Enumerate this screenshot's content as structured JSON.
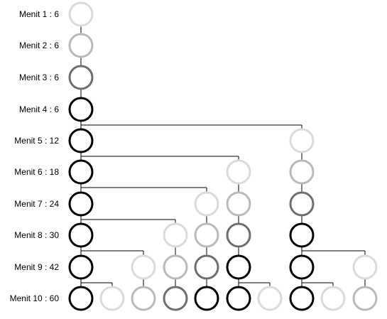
{
  "row_labels": [
    "Menit 1 : 6",
    "Menit 2 : 6",
    "Menit 3 : 6",
    "Menit 4 : 6",
    "Menit 5 : 12",
    "Menit 6 : 18",
    "Menit 7 : 24",
    "Menit 8 : 30",
    "Menit 9 : 42",
    "Menit  10 : 60"
  ],
  "stage_colors": [
    "#dadada",
    "#b9b9b9",
    "#6e6e6e",
    "#000000"
  ],
  "nodes": [
    {
      "row": 0,
      "col": 0,
      "stage": 0
    },
    {
      "row": 1,
      "col": 0,
      "stage": 1
    },
    {
      "row": 2,
      "col": 0,
      "stage": 2
    },
    {
      "row": 3,
      "col": 0,
      "stage": 3
    },
    {
      "row": 4,
      "col": 0,
      "stage": 3
    },
    {
      "row": 4,
      "col": 7,
      "stage": 0
    },
    {
      "row": 5,
      "col": 0,
      "stage": 3
    },
    {
      "row": 5,
      "col": 5,
      "stage": 0
    },
    {
      "row": 5,
      "col": 7,
      "stage": 1
    },
    {
      "row": 6,
      "col": 0,
      "stage": 3
    },
    {
      "row": 6,
      "col": 4,
      "stage": 0
    },
    {
      "row": 6,
      "col": 5,
      "stage": 1
    },
    {
      "row": 6,
      "col": 7,
      "stage": 2
    },
    {
      "row": 7,
      "col": 0,
      "stage": 3
    },
    {
      "row": 7,
      "col": 3,
      "stage": 0
    },
    {
      "row": 7,
      "col": 4,
      "stage": 1
    },
    {
      "row": 7,
      "col": 5,
      "stage": 2
    },
    {
      "row": 7,
      "col": 7,
      "stage": 3
    },
    {
      "row": 8,
      "col": 0,
      "stage": 3
    },
    {
      "row": 8,
      "col": 2,
      "stage": 0
    },
    {
      "row": 8,
      "col": 3,
      "stage": 1
    },
    {
      "row": 8,
      "col": 4,
      "stage": 2
    },
    {
      "row": 8,
      "col": 5,
      "stage": 3
    },
    {
      "row": 8,
      "col": 7,
      "stage": 3
    },
    {
      "row": 8,
      "col": 9,
      "stage": 0
    },
    {
      "row": 9,
      "col": 0,
      "stage": 3
    },
    {
      "row": 9,
      "col": 1,
      "stage": 0
    },
    {
      "row": 9,
      "col": 2,
      "stage": 1
    },
    {
      "row": 9,
      "col": 3,
      "stage": 2
    },
    {
      "row": 9,
      "col": 4,
      "stage": 3
    },
    {
      "row": 9,
      "col": 5,
      "stage": 3
    },
    {
      "row": 9,
      "col": 6,
      "stage": 0
    },
    {
      "row": 9,
      "col": 7,
      "stage": 3
    },
    {
      "row": 9,
      "col": 8,
      "stage": 0
    },
    {
      "row": 9,
      "col": 9,
      "stage": 1
    }
  ],
  "branches": [
    {
      "from_row": 3,
      "from_col": 0,
      "to_col": 7
    },
    {
      "from_row": 4,
      "from_col": 0,
      "to_col": 5
    },
    {
      "from_row": 5,
      "from_col": 0,
      "to_col": 4
    },
    {
      "from_row": 6,
      "from_col": 0,
      "to_col": 3
    },
    {
      "from_row": 7,
      "from_col": 0,
      "to_col": 2
    },
    {
      "from_row": 7,
      "from_col": 7,
      "to_col": 9
    },
    {
      "from_row": 8,
      "from_col": 0,
      "to_col": 1
    },
    {
      "from_row": 8,
      "from_col": 5,
      "to_col": 6
    },
    {
      "from_row": 8,
      "from_col": 7,
      "to_col": 8
    }
  ]
}
